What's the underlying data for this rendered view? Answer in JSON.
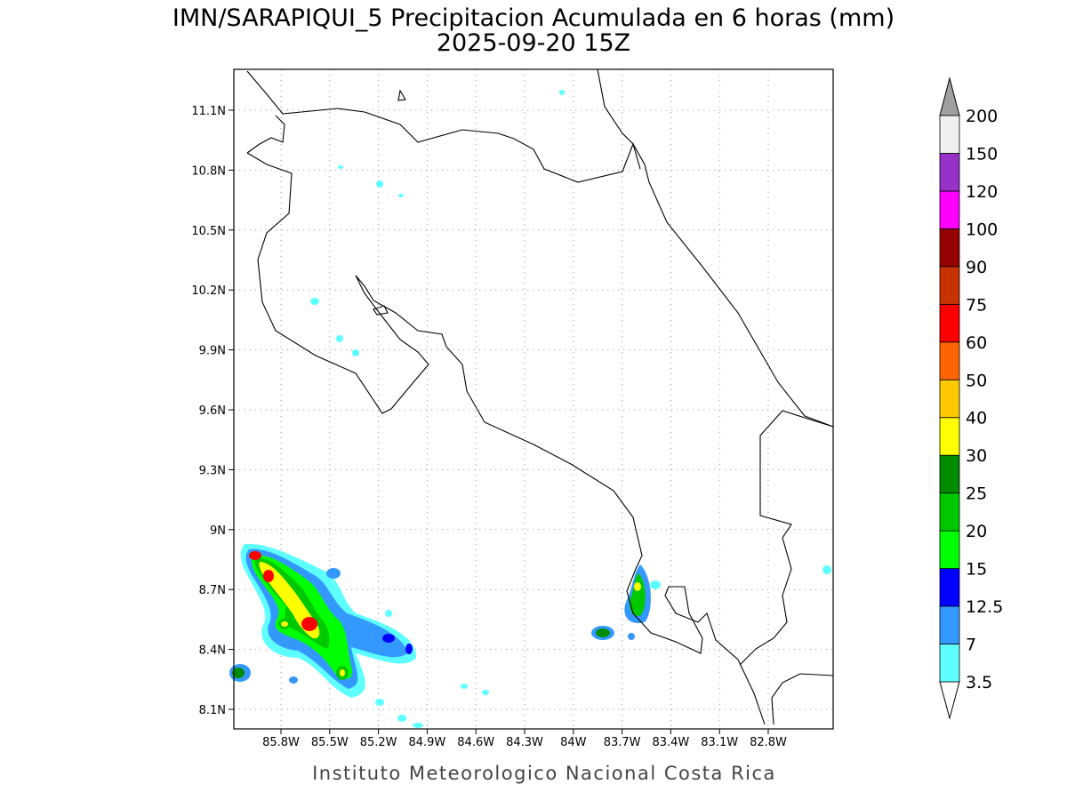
{
  "title": "IMN/SARAPIQUI_5 Precipitacion Acumulada en 6 horas (mm)",
  "subtitle": "2025-09-20 15Z",
  "footer": "Instituto Meteorologico Nacional Costa Rica",
  "lon_ticks": [
    "85.8W",
    "85.5W",
    "85.2W",
    "84.9W",
    "84.6W",
    "84.3W",
    "84W",
    "83.7W",
    "83.4W",
    "83.1W",
    "82.8W"
  ],
  "lat_ticks": [
    "11.1N",
    "10.8N",
    "10.5N",
    "10.2N",
    "9.9N",
    "9.6N",
    "9.3N",
    "9N",
    "8.7N",
    "8.4N",
    "8.1N"
  ],
  "colorbar": {
    "labels": [
      "3.5",
      "7",
      "12.5",
      "15",
      "20",
      "25",
      "30",
      "40",
      "50",
      "60",
      "75",
      "90",
      "100",
      "120",
      "150",
      "200"
    ],
    "colors": [
      "#5effff",
      "#3399ff",
      "#0000ff",
      "#00ff00",
      "#00c800",
      "#008c00",
      "#ffff00",
      "#ffc800",
      "#ff6400",
      "#ff0000",
      "#c83200",
      "#960000",
      "#ff00ff",
      "#9632c8",
      "#f0f0f0"
    ],
    "under_color": "#ffffff",
    "over_color": "#a0a0a0"
  }
}
